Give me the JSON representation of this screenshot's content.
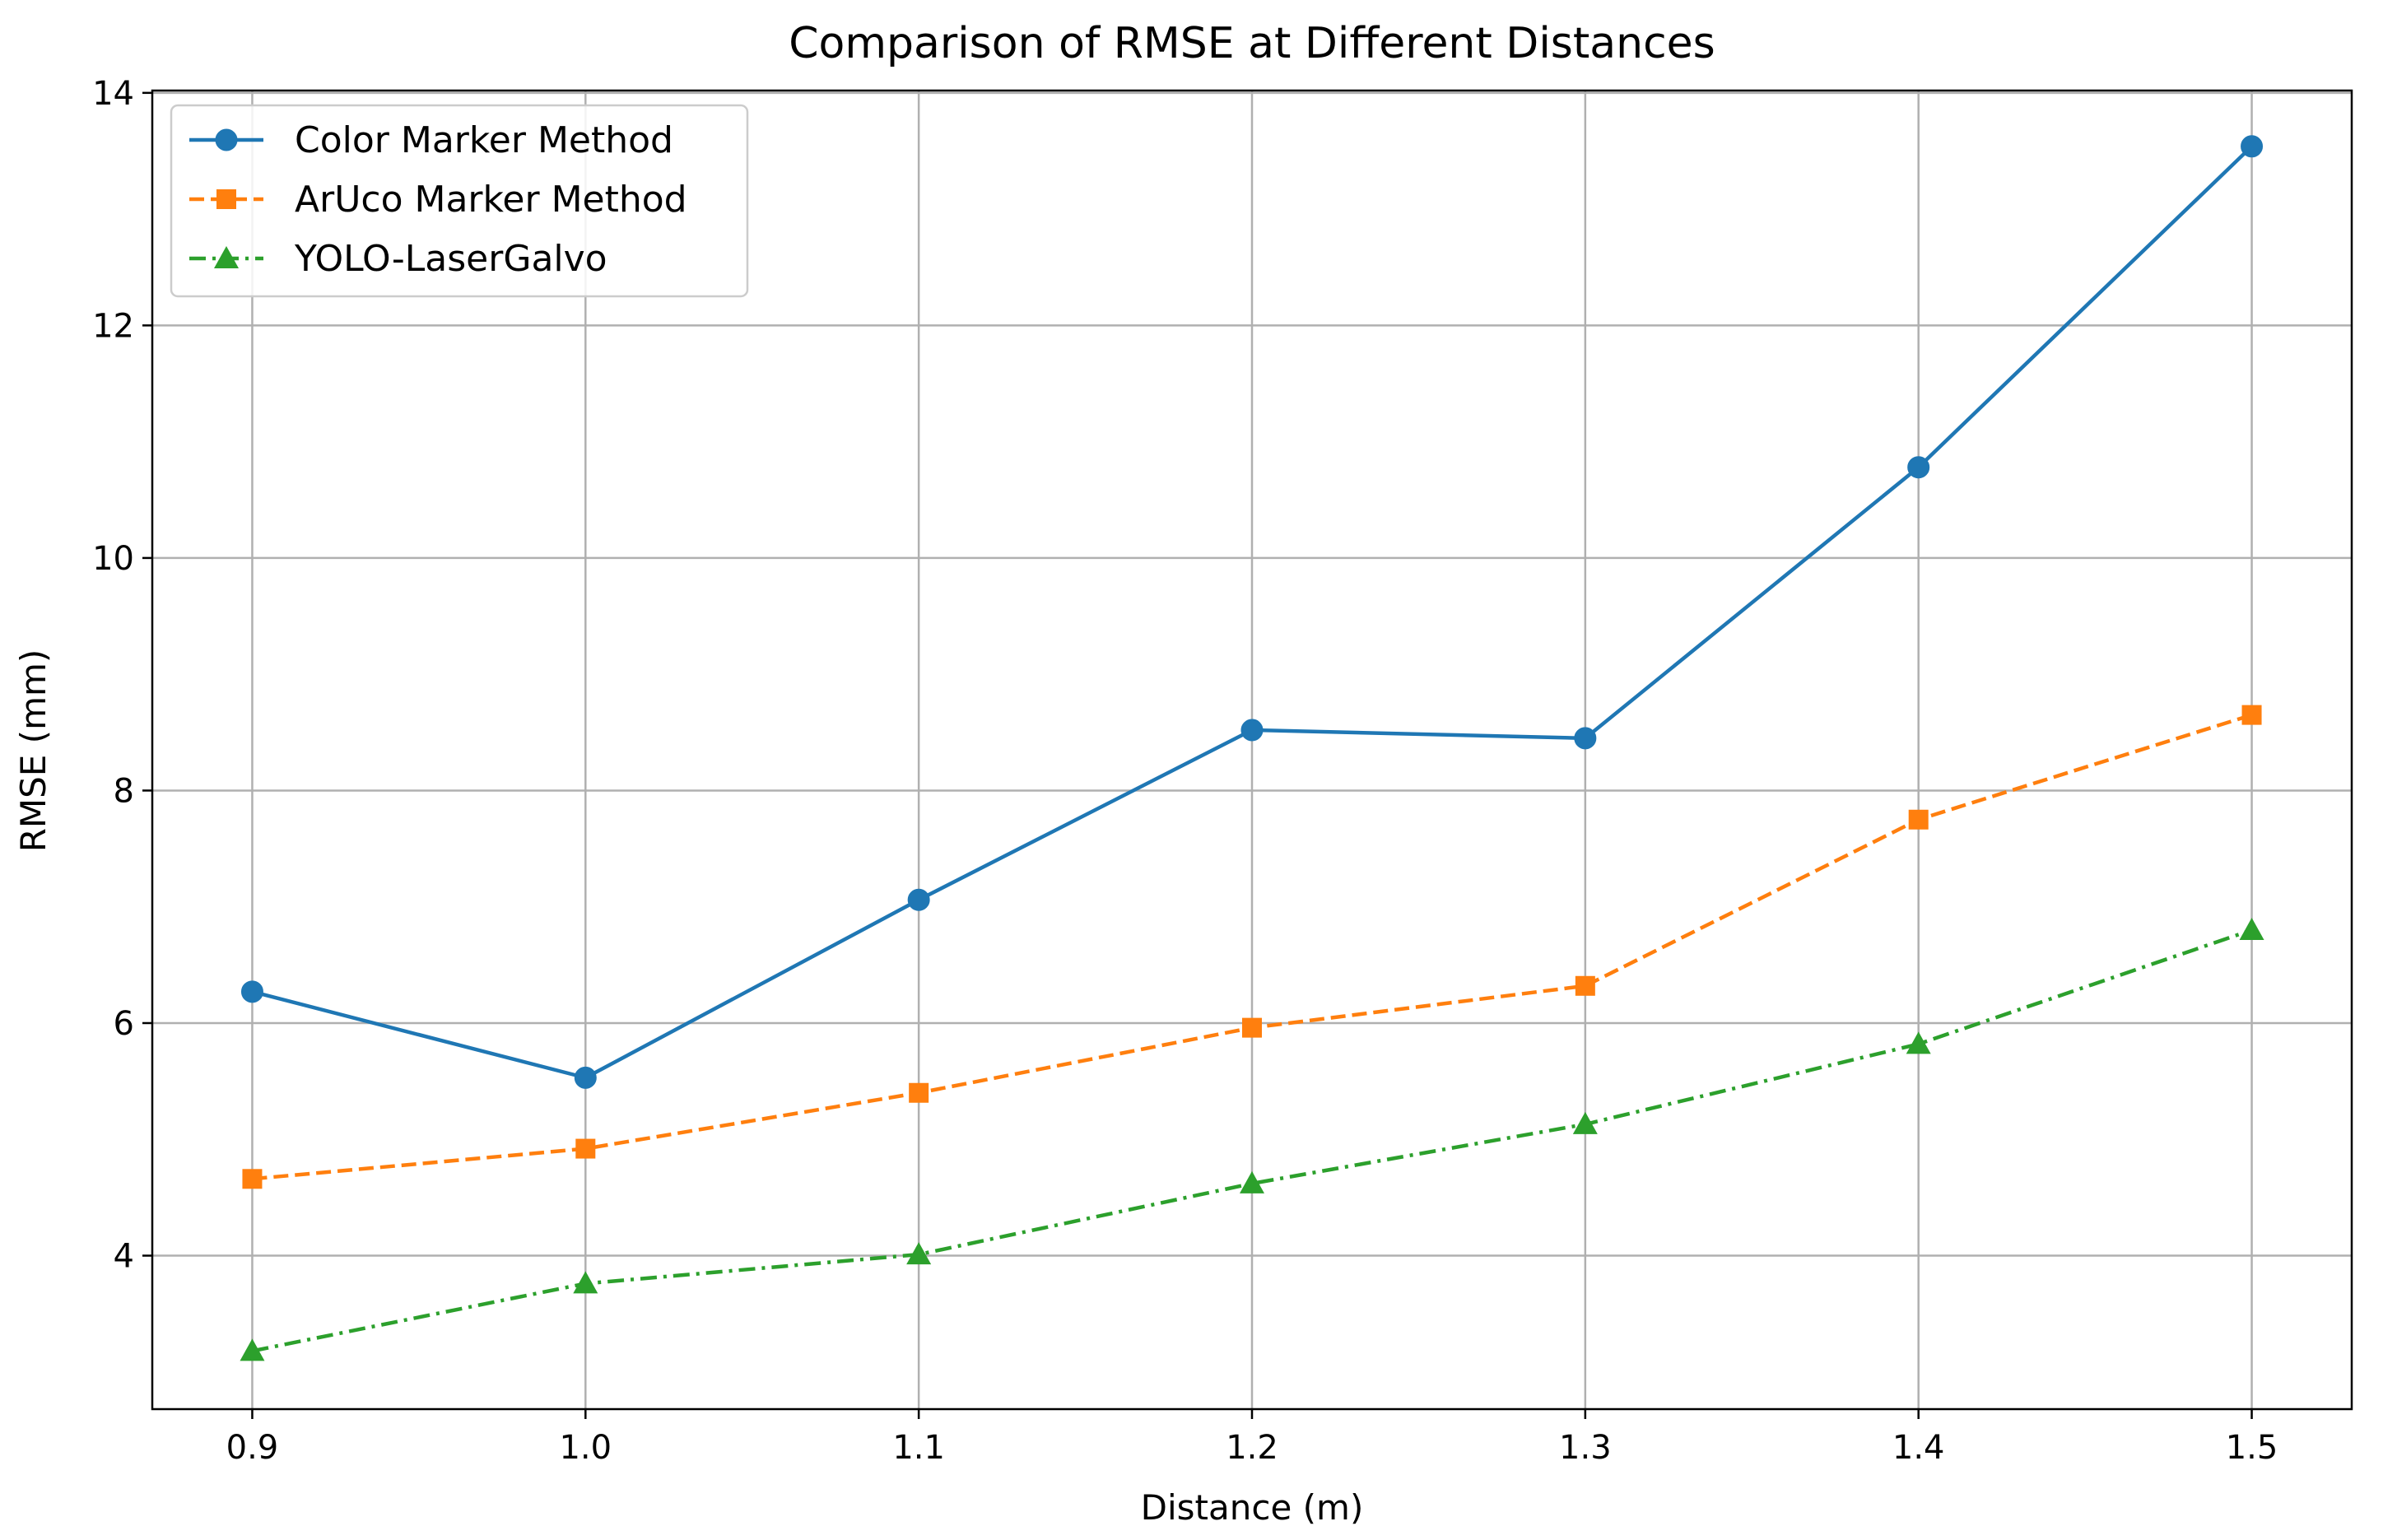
{
  "chart_data": {
    "type": "line",
    "title": "Comparison of RMSE at Different Distances",
    "xlabel": "Distance (m)",
    "ylabel": "RMSE (mm)",
    "x": [
      0.9,
      1.0,
      1.1,
      1.2,
      1.3,
      1.4,
      1.5
    ],
    "x_tick_labels": [
      "0.9",
      "1.0",
      "1.1",
      "1.2",
      "1.3",
      "1.4",
      "1.5"
    ],
    "y_ticks": [
      4,
      6,
      8,
      10,
      12,
      14
    ],
    "y_tick_labels": [
      "4",
      "6",
      "8",
      "10",
      "12",
      "14"
    ],
    "xlim": [
      0.87,
      1.53
    ],
    "ylim": [
      2.68,
      14.02
    ],
    "grid": true,
    "legend_position": "top-left",
    "series": [
      {
        "name": "Color Marker Method",
        "values": [
          6.27,
          5.53,
          7.06,
          8.52,
          8.45,
          10.78,
          13.54
        ],
        "color": "#1f77b4",
        "line_style": "solid",
        "marker": "circle"
      },
      {
        "name": "ArUco Marker Method",
        "values": [
          4.66,
          4.92,
          5.4,
          5.96,
          6.32,
          7.75,
          8.65
        ],
        "color": "#ff7f0e",
        "line_style": "dashed",
        "marker": "square"
      },
      {
        "name": "YOLO-LaserGalvo",
        "values": [
          3.18,
          3.76,
          4.01,
          4.62,
          5.13,
          5.82,
          6.8
        ],
        "color": "#2ca02c",
        "line_style": "dashdot",
        "marker": "triangle"
      }
    ]
  }
}
